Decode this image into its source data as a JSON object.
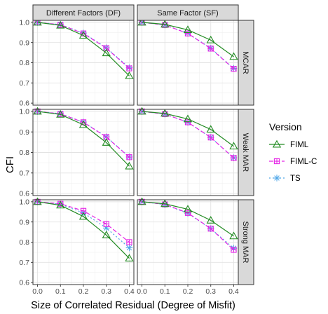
{
  "chart_data": {
    "type": "line",
    "title": "",
    "xlabel": "Size of Correlated Residual (Degree of Misfit)",
    "ylabel": "CFI",
    "x": [
      0.0,
      0.1,
      0.2,
      0.3,
      0.4
    ],
    "x_ticks": [
      "0.0",
      "0.1",
      "0.2",
      "0.3",
      "0.4"
    ],
    "xlim": [
      -0.02,
      0.42
    ],
    "y_ticks": [
      "0.6",
      "0.7",
      "0.8",
      "0.9",
      "1.0"
    ],
    "ylim": [
      0.59,
      1.01
    ],
    "grid": true,
    "legend": {
      "title": "Version",
      "placement": "right",
      "entries": [
        {
          "name": "FIML",
          "color": "#228b22",
          "marker": "triangle-open",
          "dash": "solid"
        },
        {
          "name": "FIML-C",
          "color": "#e524e5",
          "marker": "square-cross",
          "dash": "dashed"
        },
        {
          "name": "TS",
          "color": "#4da6e8",
          "marker": "asterisk",
          "dash": "dotted"
        }
      ]
    },
    "columns": [
      "Different Factors (DF)",
      "Same Factor (SF)"
    ],
    "rows": [
      "MCAR",
      "Weak MAR",
      "Strong MAR"
    ],
    "panels": [
      {
        "row": "MCAR",
        "column": "Different Factors (DF)",
        "series": [
          {
            "name": "FIML",
            "values": [
              1.0,
              0.985,
              0.935,
              0.848,
              0.735
            ]
          },
          {
            "name": "FIML-C",
            "values": [
              1.0,
              0.988,
              0.945,
              0.872,
              0.772
            ]
          },
          {
            "name": "TS",
            "values": [
              1.0,
              0.989,
              0.947,
              0.874,
              0.775
            ]
          }
        ]
      },
      {
        "row": "MCAR",
        "column": "Same Factor (SF)",
        "series": [
          {
            "name": "FIML",
            "values": [
              1.0,
              0.99,
              0.963,
              0.912,
              0.83
            ]
          },
          {
            "name": "FIML-C",
            "values": [
              1.0,
              0.987,
              0.945,
              0.87,
              0.77
            ]
          },
          {
            "name": "TS",
            "values": [
              1.0,
              0.987,
              0.946,
              0.872,
              0.772
            ]
          }
        ]
      },
      {
        "row": "Weak MAR",
        "column": "Different Factors (DF)",
        "series": [
          {
            "name": "FIML",
            "values": [
              1.0,
              0.985,
              0.935,
              0.848,
              0.733
            ]
          },
          {
            "name": "FIML-C",
            "values": [
              1.0,
              0.988,
              0.947,
              0.875,
              0.777
            ]
          },
          {
            "name": "TS",
            "values": [
              1.0,
              0.989,
              0.948,
              0.876,
              0.778
            ]
          }
        ]
      },
      {
        "row": "Weak MAR",
        "column": "Same Factor (SF)",
        "series": [
          {
            "name": "FIML",
            "values": [
              1.0,
              0.99,
              0.963,
              0.912,
              0.83
            ]
          },
          {
            "name": "FIML-C",
            "values": [
              1.0,
              0.987,
              0.947,
              0.873,
              0.773
            ]
          },
          {
            "name": "TS",
            "values": [
              1.0,
              0.987,
              0.947,
              0.873,
              0.774
            ]
          }
        ]
      },
      {
        "row": "Strong MAR",
        "column": "Different Factors (DF)",
        "series": [
          {
            "name": "FIML",
            "values": [
              1.0,
              0.983,
              0.927,
              0.835,
              0.72
            ]
          },
          {
            "name": "FIML-C",
            "values": [
              1.0,
              0.99,
              0.955,
              0.89,
              0.8
            ]
          },
          {
            "name": "TS",
            "values": [
              1.0,
              0.988,
              0.945,
              0.87,
              0.772
            ]
          }
        ]
      },
      {
        "row": "Strong MAR",
        "column": "Same Factor (SF)",
        "series": [
          {
            "name": "FIML",
            "values": [
              1.0,
              0.99,
              0.963,
              0.908,
              0.83
            ]
          },
          {
            "name": "FIML-C",
            "values": [
              1.0,
              0.987,
              0.945,
              0.867,
              0.762
            ]
          },
          {
            "name": "TS",
            "values": [
              1.0,
              0.986,
              0.943,
              0.867,
              0.77
            ]
          }
        ]
      }
    ]
  }
}
